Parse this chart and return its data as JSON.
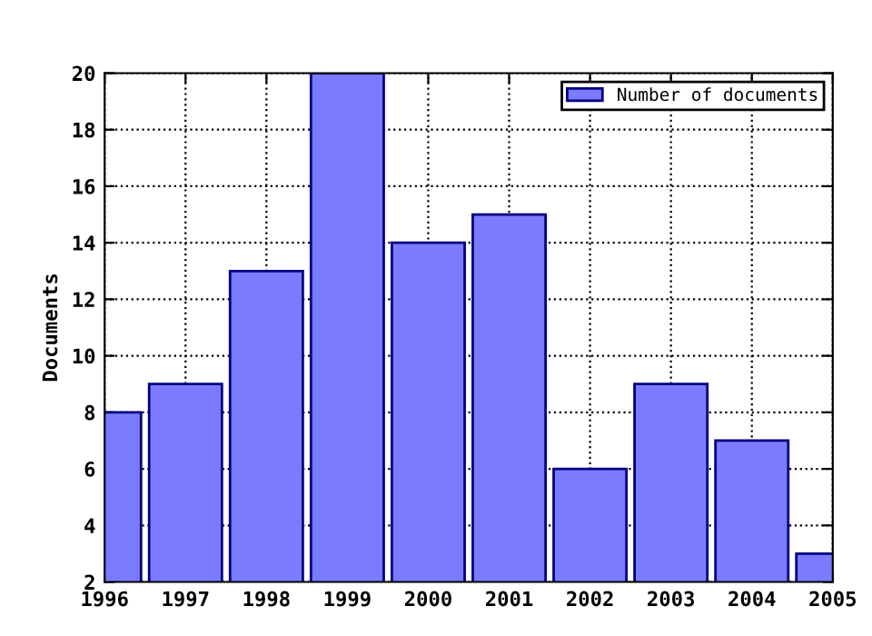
{
  "chart_data": {
    "type": "bar",
    "ylabel": "Documents",
    "x": [
      1996,
      1997,
      1998,
      1999,
      2000,
      2001,
      2002,
      2003,
      2004,
      2005
    ],
    "series": [
      {
        "name": "Number of documents",
        "color": "#7b7bff",
        "values": [
          8,
          9,
          13,
          20,
          14,
          15,
          6,
          9,
          7,
          3
        ]
      }
    ],
    "xlim": [
      1996,
      2005
    ],
    "xticks": [
      1996,
      1997,
      1998,
      1999,
      2000,
      2001,
      2002,
      2003,
      2004,
      2005
    ],
    "ylim": [
      2,
      20
    ],
    "yticks": [
      2,
      4,
      6,
      8,
      10,
      12,
      14,
      16,
      18,
      20
    ],
    "grid": true,
    "legend": "top right"
  }
}
